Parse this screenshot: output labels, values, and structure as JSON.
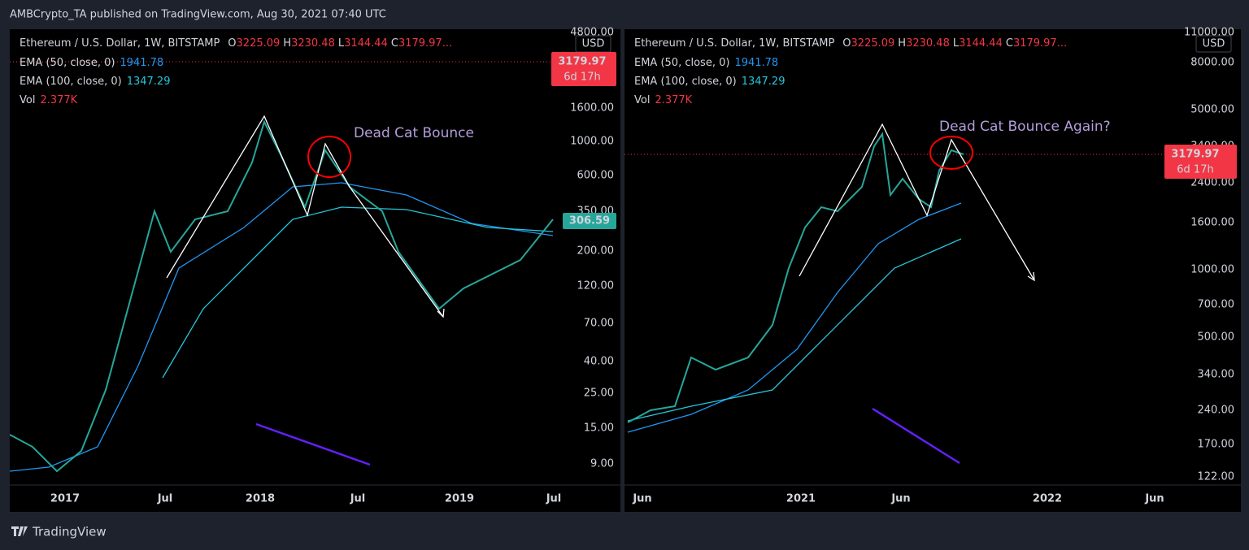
{
  "header": "AMBCrypto_TA published on TradingView.com, Aug 30, 2021 07:40 UTC",
  "footer": "TradingView",
  "panels": [
    {
      "symbol": "Ethereum / U.S. Dollar, 1W, BITSTAMP",
      "ohlc": [
        [
          "O",
          "3225.09"
        ],
        [
          "H",
          "3230.48"
        ],
        [
          "L",
          "3144.44"
        ],
        [
          "C",
          "3179.97..."
        ]
      ],
      "indicators": [
        [
          "EMA (50, close, 0)",
          "1941.78"
        ],
        [
          "EMA (100, close, 0)",
          "1347.29"
        ],
        [
          "Vol",
          "2.377K"
        ]
      ],
      "currency": "USD",
      "price_label": "3179.97",
      "countdown": "6d 17h",
      "ema_label": "306.59",
      "annotation": "Dead Cat Bounce",
      "yticks": [
        "4800.00",
        "1600.00",
        "1000.00",
        "600.00",
        "350.00",
        "200.00",
        "120.00",
        "70.00",
        "40.00",
        "25.00",
        "15.00",
        "9.00"
      ],
      "xticks": [
        "2017",
        "Jul",
        "2018",
        "Jul",
        "2019",
        "Jul"
      ]
    },
    {
      "symbol": "Ethereum / U.S. Dollar, 1W, BITSTAMP",
      "ohlc": [
        [
          "O",
          "3225.09"
        ],
        [
          "H",
          "3230.48"
        ],
        [
          "L",
          "3144.44"
        ],
        [
          "C",
          "3179.97..."
        ]
      ],
      "indicators": [
        [
          "EMA (50, close, 0)",
          "1941.78"
        ],
        [
          "EMA (100, close, 0)",
          "1347.29"
        ],
        [
          "Vol",
          "2.377K"
        ]
      ],
      "currency": "USD",
      "price_label": "3179.97",
      "countdown": "6d 17h",
      "annotation": "Dead Cat Bounce Again?",
      "yticks": [
        "11000.00",
        "8000.00",
        "5000.00",
        "3400.00",
        "2400.00",
        "1600.00",
        "1000.00",
        "700.00",
        "500.00",
        "340.00",
        "240.00",
        "170.00",
        "122.00"
      ],
      "xticks": [
        "Jun",
        "2021",
        "Jun",
        "2022",
        "Jun"
      ]
    }
  ]
}
